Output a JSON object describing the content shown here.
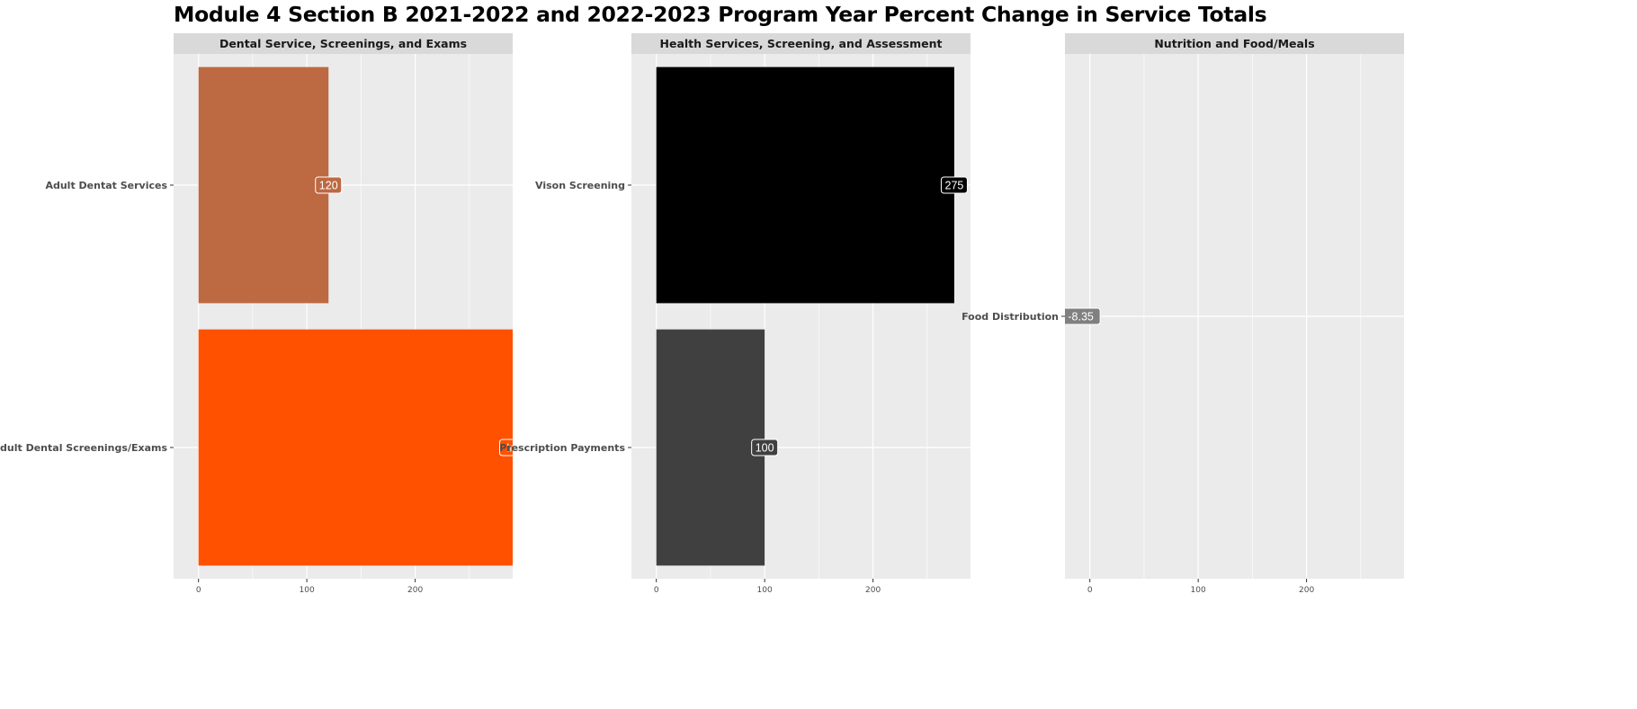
{
  "chart_data": {
    "title": "Module 4 Section B 2021-2022 and 2022-2023 Program Year Percent Change in Service Totals",
    "type": "bar",
    "orientation": "horizontal",
    "x_ticks": [
      0,
      100,
      200
    ],
    "xlim": [
      -23,
      290
    ],
    "grid": true,
    "panels": [
      {
        "title": "Dental Service, Screenings, and Exams",
        "bars": [
          {
            "category": "Adult Dentat Services",
            "value": 120,
            "label": "120",
            "color": "#BD6942"
          },
          {
            "category": "Adult Dental Screenings/Exams",
            "value": 290,
            "label": "Inf",
            "color": "#FF5100"
          }
        ]
      },
      {
        "title": "Health Services, Screening, and Assessment",
        "bars": [
          {
            "category": "Vison Screening",
            "value": 275,
            "label": "275",
            "color": "#000000"
          },
          {
            "category": "Prescription Payments",
            "value": 100,
            "label": "100",
            "color": "#404041"
          }
        ]
      },
      {
        "title": "Nutrition and Food/Meals",
        "bars": [
          {
            "category": "Food Distribution",
            "value": -8.35,
            "label": "-8.35",
            "color": "#808080"
          }
        ]
      }
    ]
  }
}
